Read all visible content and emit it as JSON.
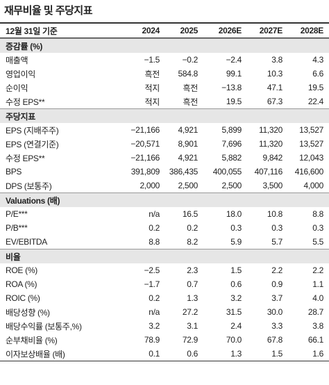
{
  "title": "재무비율 및 주당지표",
  "table": {
    "header": {
      "label": "12월 31일 기준",
      "columns": [
        "2024",
        "2025",
        "2026E",
        "2027E",
        "2028E"
      ]
    },
    "sections": [
      {
        "title": "증감률 (%)",
        "rows": [
          {
            "label": "매출액",
            "values": [
              "−1.5",
              "−0.2",
              "−2.4",
              "3.8",
              "4.3"
            ]
          },
          {
            "label": "영업이익",
            "values": [
              "흑전",
              "584.8",
              "99.1",
              "10.3",
              "6.6"
            ]
          },
          {
            "label": "순이익",
            "values": [
              "적지",
              "흑전",
              "−13.8",
              "47.1",
              "19.5"
            ]
          },
          {
            "label": "수정 EPS**",
            "values": [
              "적지",
              "흑전",
              "19.5",
              "67.3",
              "22.4"
            ]
          }
        ]
      },
      {
        "title": "주당지표",
        "rows": [
          {
            "label": "EPS (지배주주)",
            "values": [
              "−21,166",
              "4,921",
              "5,899",
              "11,320",
              "13,527"
            ]
          },
          {
            "label": "EPS (연결기준)",
            "values": [
              "−20,571",
              "8,901",
              "7,696",
              "11,320",
              "13,527"
            ]
          },
          {
            "label": "수정 EPS**",
            "values": [
              "−21,166",
              "4,921",
              "5,882",
              "9,842",
              "12,043"
            ]
          },
          {
            "label": "BPS",
            "values": [
              "391,809",
              "386,435",
              "400,055",
              "407,116",
              "416,600"
            ]
          },
          {
            "label": "DPS (보통주)",
            "values": [
              "2,000",
              "2,500",
              "2,500",
              "3,500",
              "4,000"
            ]
          }
        ]
      },
      {
        "title": "Valuations (배)",
        "rows": [
          {
            "label": "P/E***",
            "values": [
              "n/a",
              "16.5",
              "18.0",
              "10.8",
              "8.8"
            ]
          },
          {
            "label": "P/B***",
            "values": [
              "0.2",
              "0.2",
              "0.3",
              "0.3",
              "0.3"
            ]
          },
          {
            "label": "EV/EBITDA",
            "values": [
              "8.8",
              "8.2",
              "5.9",
              "5.7",
              "5.5"
            ]
          }
        ]
      },
      {
        "title": "비율",
        "rows": [
          {
            "label": "ROE (%)",
            "values": [
              "−2.5",
              "2.3",
              "1.5",
              "2.2",
              "2.2"
            ]
          },
          {
            "label": "ROA (%)",
            "values": [
              "−1.7",
              "0.7",
              "0.6",
              "0.9",
              "1.1"
            ]
          },
          {
            "label": "ROIC (%)",
            "values": [
              "0.2",
              "1.3",
              "3.2",
              "3.7",
              "4.0"
            ]
          },
          {
            "label": "배당성향 (%)",
            "values": [
              "n/a",
              "27.2",
              "31.5",
              "30.0",
              "28.7"
            ]
          },
          {
            "label": "배당수익률 (보통주,%)",
            "values": [
              "3.2",
              "3.1",
              "2.4",
              "3.3",
              "3.8"
            ]
          },
          {
            "label": "순부채비율 (%)",
            "values": [
              "78.9",
              "72.9",
              "70.0",
              "67.8",
              "66.1"
            ]
          },
          {
            "label": "이자보상배율 (배)",
            "values": [
              "0.1",
              "0.6",
              "1.3",
              "1.5",
              "1.6"
            ]
          }
        ]
      }
    ]
  }
}
